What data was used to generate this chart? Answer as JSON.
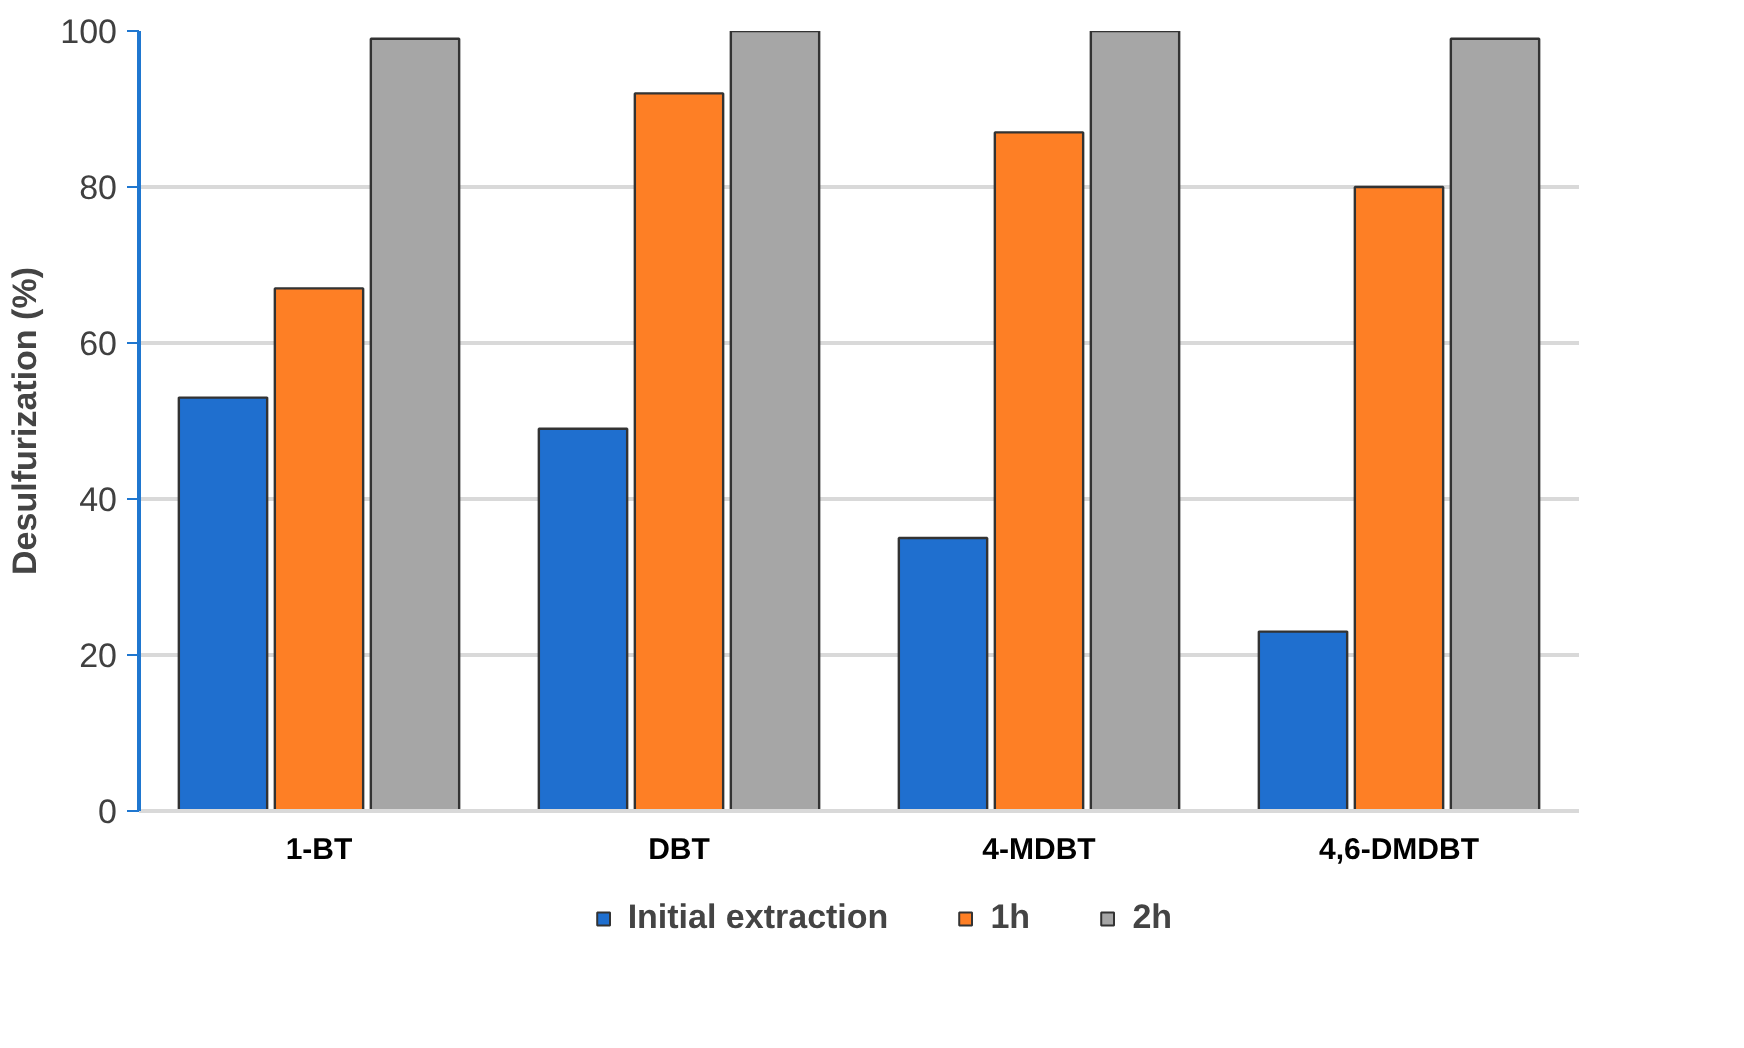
{
  "chart_data": {
    "type": "bar",
    "ylabel": "Desulfurization (%)",
    "categories": [
      "1-BT",
      "DBT",
      "4-MDBT",
      "4,6-DMDBT"
    ],
    "series": [
      {
        "name": "Initial extraction",
        "color": "#1f6fcf",
        "values": [
          53,
          49,
          35,
          23
        ]
      },
      {
        "name": "1h",
        "color": "#fe7f25",
        "values": [
          67,
          92,
          87,
          80
        ]
      },
      {
        "name": "2h",
        "color": "#a6a6a6",
        "values": [
          99,
          100,
          100,
          99
        ]
      }
    ],
    "ylim": [
      0,
      100
    ],
    "yticks": [
      0,
      20,
      40,
      60,
      80,
      100
    ],
    "grid": "y",
    "legend": "bottom"
  }
}
